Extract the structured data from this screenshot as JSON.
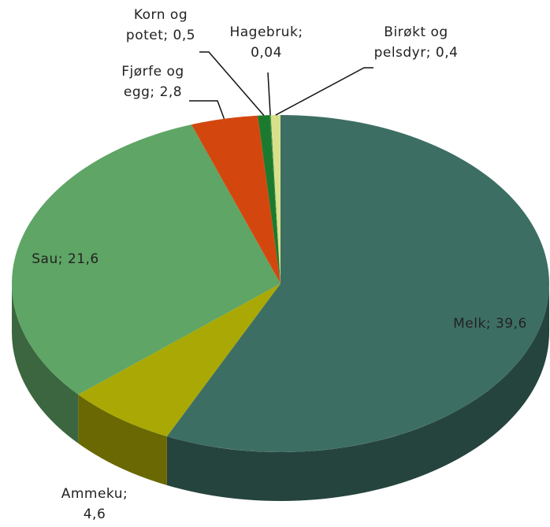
{
  "chart_data": {
    "type": "pie",
    "three_d": true,
    "categories": [
      "Melk",
      "Ammeku",
      "Sau",
      "Fjørfe og egg",
      "Korn og potet",
      "Hagebruk",
      "Birøkt og pelsdyr"
    ],
    "values": [
      39.6,
      4.6,
      21.6,
      2.8,
      0.5,
      0.04,
      0.4
    ],
    "value_labels": [
      "39,6",
      "4,6",
      "21,6",
      "2,8",
      "0,5",
      "0,04",
      "0,4"
    ],
    "label_separator": ";",
    "colors": [
      "#3d6e64",
      "#a9a805",
      "#5fa565",
      "#d3470f",
      "#1c7a2e",
      "#3b8f3f",
      "#d9e08c"
    ]
  }
}
